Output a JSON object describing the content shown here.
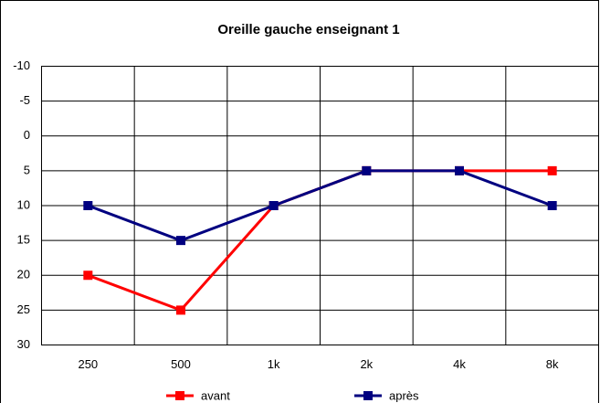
{
  "chart_data": {
    "type": "line",
    "title": "Oreille gauche enseignant 1",
    "categories": [
      "250",
      "500",
      "1k",
      "2k",
      "4k",
      "8k"
    ],
    "series": [
      {
        "name": "avant",
        "color": "#ff0000",
        "values": [
          20,
          25,
          10,
          5,
          5,
          5
        ]
      },
      {
        "name": "après",
        "color": "#000080",
        "values": [
          10,
          15,
          10,
          5,
          5,
          10
        ]
      }
    ],
    "ylim": [
      30,
      -10
    ],
    "yticks": [
      -10,
      -5,
      0,
      5,
      10,
      15,
      20,
      25,
      30
    ],
    "grid": true
  }
}
